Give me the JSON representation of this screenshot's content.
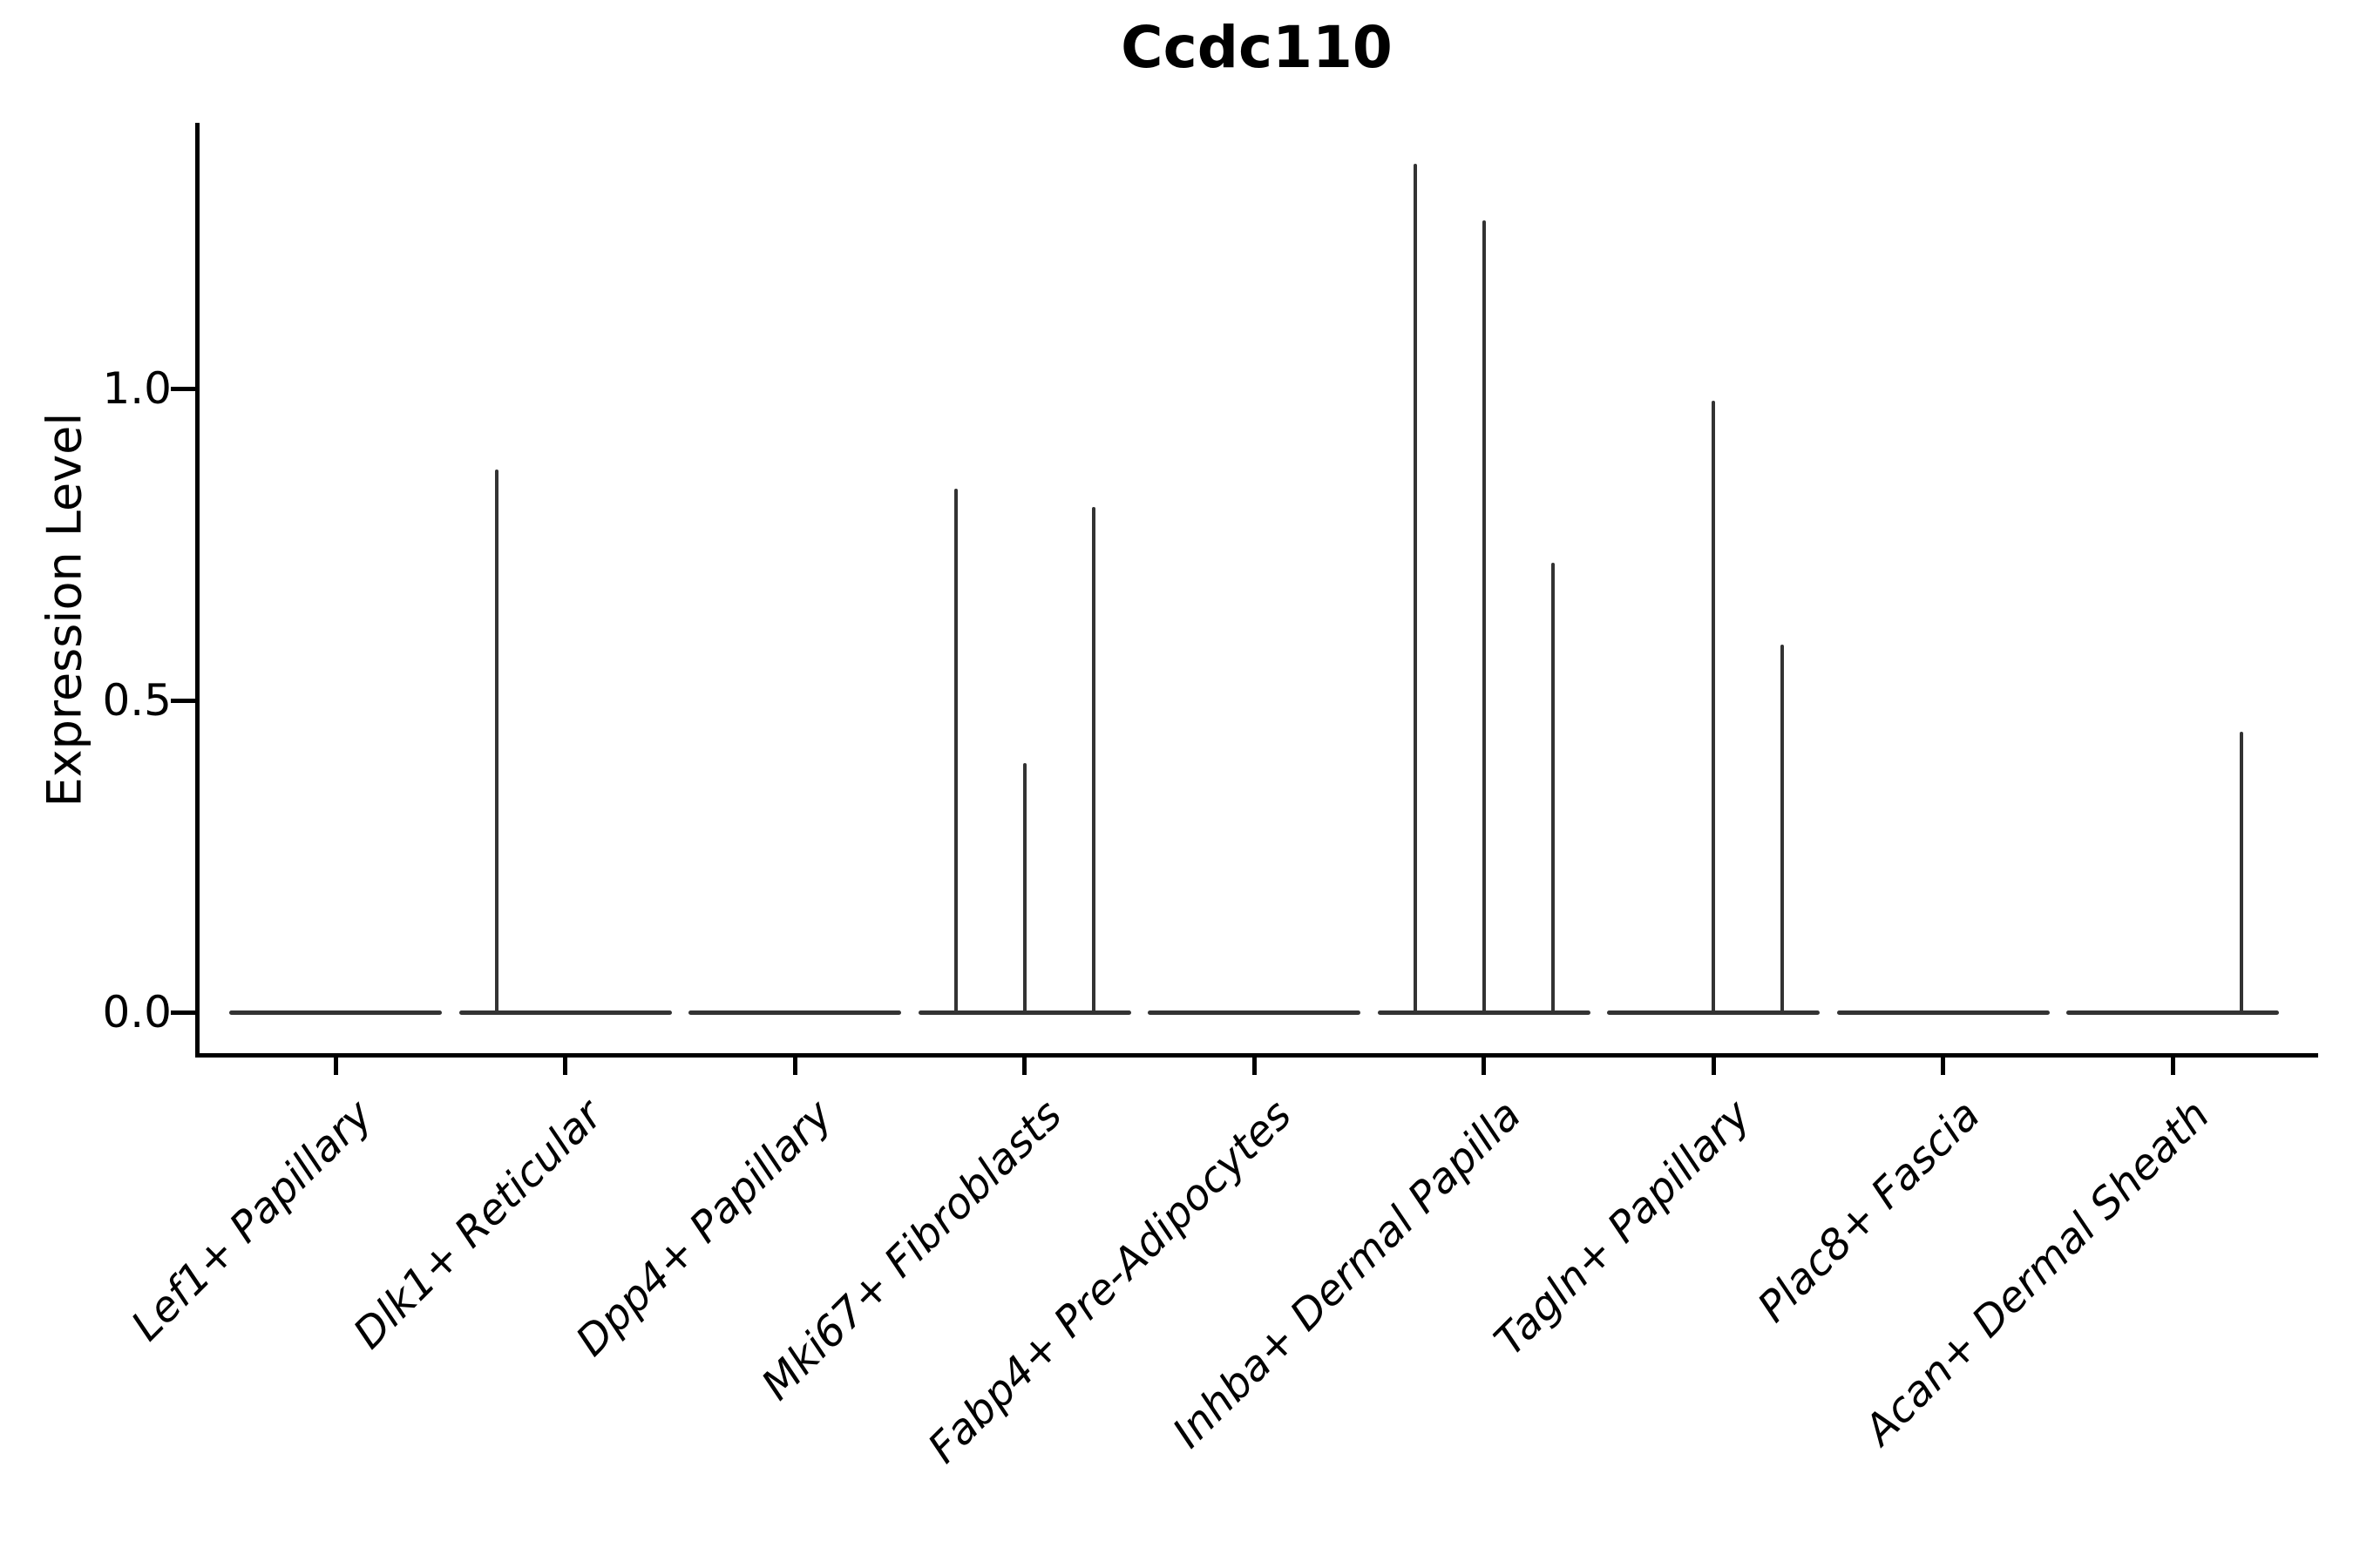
{
  "chart_data": {
    "type": "violin",
    "title": "Ccdc110",
    "xlabel": "",
    "ylabel": "Expression Level",
    "grid": false,
    "legend": null,
    "ylim": [
      -0.07,
      1.42
    ],
    "y_ticks": [
      {
        "label": "0.0",
        "value": 0.0
      },
      {
        "label": "0.5",
        "value": 0.5
      },
      {
        "label": "1.0",
        "value": 1.0
      }
    ],
    "categories": [
      "Lef1+ Papillary",
      "Dlk1+ Reticular",
      "Dpp4+ Papillary",
      "Mki67+ Fibroblasts",
      "Fabp4+ Pre-Adipocytes",
      "Inhba+ Dermal Papilla",
      "Tagln+ Papillary",
      "Plac8+ Fascia",
      "Acan+ Dermal Sheath"
    ],
    "violins": [
      {
        "category": "Lef1+ Papillary",
        "baseline_value": 0,
        "spikes": []
      },
      {
        "category": "Dlk1+ Reticular",
        "baseline_value": 0,
        "spikes": [
          {
            "split": -1,
            "max": 0.87
          }
        ]
      },
      {
        "category": "Dpp4+ Papillary",
        "baseline_value": 0,
        "spikes": []
      },
      {
        "category": "Mki67+ Fibroblasts",
        "baseline_value": 0,
        "spikes": [
          {
            "split": -1,
            "max": 0.84
          },
          {
            "split": 0,
            "max": 0.4
          },
          {
            "split": 1,
            "max": 0.81
          }
        ]
      },
      {
        "category": "Fabp4+ Pre-Adipocytes",
        "baseline_value": 0,
        "spikes": []
      },
      {
        "category": "Inhba+ Dermal Papilla",
        "baseline_value": 0,
        "spikes": [
          {
            "split": -1,
            "max": 1.36
          },
          {
            "split": 0,
            "max": 1.27
          },
          {
            "split": 1,
            "max": 0.72
          }
        ]
      },
      {
        "category": "Tagln+ Papillary",
        "baseline_value": 0,
        "spikes": [
          {
            "split": 0,
            "max": 0.98
          },
          {
            "split": 1,
            "max": 0.59
          }
        ]
      },
      {
        "category": "Plac8+ Fascia",
        "baseline_value": 0,
        "spikes": []
      },
      {
        "category": "Acan+ Dermal Sheath",
        "baseline_value": 0,
        "spikes": [
          {
            "split": 1,
            "max": 0.45
          }
        ]
      }
    ],
    "colors": {
      "violin_line": "#333333",
      "axis": "#000000",
      "text": "#000000",
      "background": "#ffffff"
    }
  }
}
